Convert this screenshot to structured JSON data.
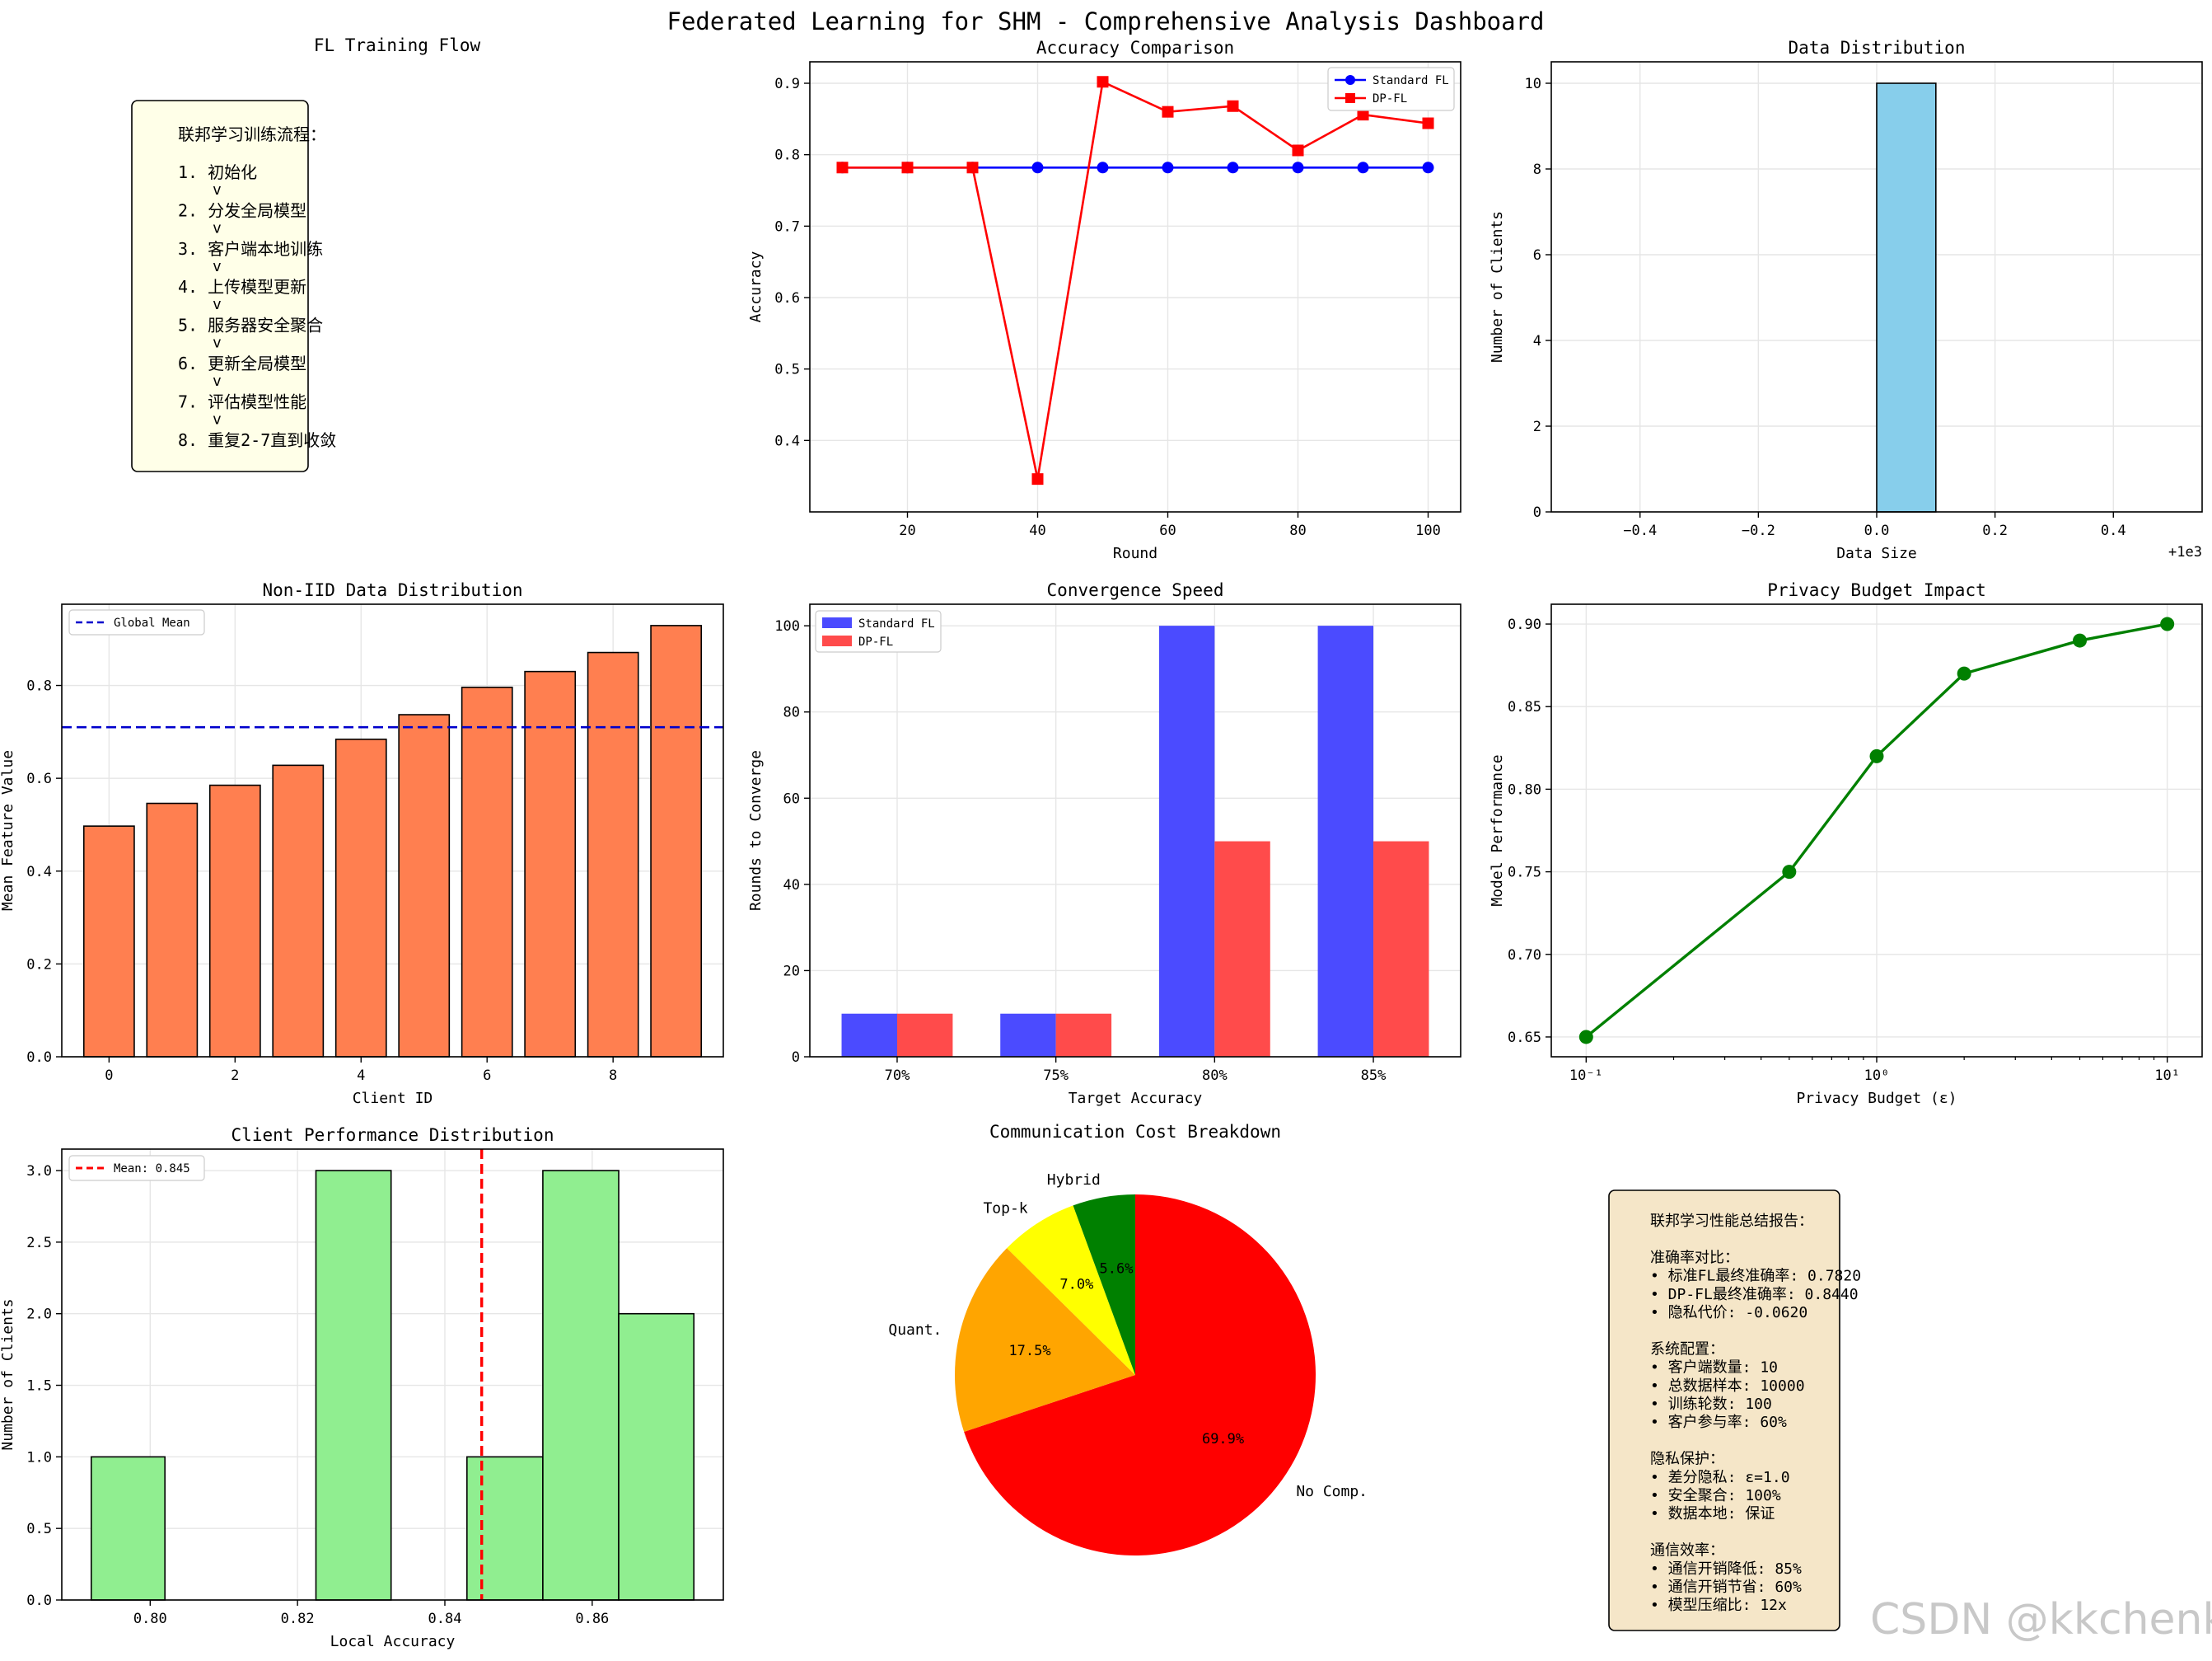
{
  "dashboard": {
    "title": "Federated Learning for SHM - Comprehensive Analysis Dashboard"
  },
  "watermark": "CSDN @kkchenkx",
  "colors": {
    "standard_fl": "#0000ff",
    "dp_fl": "#ff0000",
    "hist_blue": "#87ceeb",
    "bar_orange": "#ff7f50",
    "conv_blue": "#4b4bff",
    "conv_red": "#ff4b4b",
    "privacy_green": "#008000",
    "hist_green": "#90ee90",
    "flow_box": "#ffffe8",
    "summary_box": "#f5e6c8"
  },
  "chart_data": [
    {
      "id": "flow",
      "type": "diagram",
      "title": "FL Training Flow",
      "steps": [
        "1. 初始化",
        "2. 分发全局模型",
        "3. 客户端本地训练",
        "4. 上传模型更新",
        "5. 服务器安全聚合",
        "6. 更新全局模型",
        "7. 评估模型性能",
        "8. 重复2-7直到收敛"
      ],
      "box_title": "联邦学习训练流程：",
      "arrow": "v"
    },
    {
      "id": "accuracy",
      "type": "line",
      "title": "Accuracy Comparison",
      "xlabel": "Round",
      "ylabel": "Accuracy",
      "x": [
        10,
        20,
        30,
        40,
        50,
        60,
        70,
        80,
        90,
        100
      ],
      "xlim": [
        5,
        105
      ],
      "ylim": [
        0.3,
        0.93
      ],
      "xticks": [
        20,
        40,
        60,
        80,
        100
      ],
      "yticks": [
        0.4,
        0.5,
        0.6,
        0.7,
        0.8,
        0.9
      ],
      "series": [
        {
          "name": "Standard FL",
          "values": [
            0.782,
            0.782,
            0.782,
            0.782,
            0.782,
            0.782,
            0.782,
            0.782,
            0.782,
            0.782
          ]
        },
        {
          "name": "DP-FL",
          "values": [
            0.782,
            0.782,
            0.782,
            0.346,
            0.902,
            0.86,
            0.868,
            0.806,
            0.856,
            0.844
          ]
        }
      ],
      "legend": "top-right",
      "grid": true
    },
    {
      "id": "datadist",
      "type": "bar",
      "title": "Data Distribution",
      "xlabel": "Data Size",
      "ylabel": "Number of Clients",
      "offset_label": "+1e3",
      "xlim": [
        -0.55,
        0.55
      ],
      "ylim": [
        0,
        10.5
      ],
      "xticks": [
        -0.4,
        -0.2,
        0.0,
        0.2,
        0.4
      ],
      "yticks": [
        0,
        2,
        4,
        6,
        8,
        10
      ],
      "bins": [
        {
          "x0": 0.0,
          "x1": 0.1,
          "count": 10
        }
      ],
      "grid": true
    },
    {
      "id": "noniid",
      "type": "bar",
      "title": "Non-IID Data Distribution",
      "xlabel": "Client ID",
      "ylabel": "Mean Feature Value",
      "categories": [
        0,
        1,
        2,
        3,
        4,
        5,
        6,
        7,
        8,
        9
      ],
      "values": [
        0.497,
        0.546,
        0.585,
        0.628,
        0.684,
        0.737,
        0.796,
        0.83,
        0.871,
        0.929
      ],
      "global_mean": 0.71,
      "mean_label": "Global Mean",
      "xlim": [
        -0.75,
        9.75
      ],
      "ylim": [
        0,
        0.975
      ],
      "xticks": [
        0,
        2,
        4,
        6,
        8
      ],
      "yticks": [
        0.0,
        0.2,
        0.4,
        0.6,
        0.8
      ],
      "legend": "top-left",
      "grid": true
    },
    {
      "id": "convergence",
      "type": "bar",
      "title": "Convergence Speed",
      "xlabel": "Target Accuracy",
      "ylabel": "Rounds to Converge",
      "categories": [
        "70%",
        "75%",
        "80%",
        "85%"
      ],
      "series": [
        {
          "name": "Standard FL",
          "values": [
            10,
            10,
            100,
            100
          ]
        },
        {
          "name": "DP-FL",
          "values": [
            10,
            10,
            50,
            50
          ]
        }
      ],
      "xlim": [
        -0.55,
        3.55
      ],
      "ylim": [
        0,
        105
      ],
      "yticks": [
        0,
        20,
        40,
        60,
        80,
        100
      ],
      "legend": "top-left",
      "grid": true
    },
    {
      "id": "privacy",
      "type": "line",
      "title": "Privacy Budget Impact",
      "xlabel": "Privacy Budget (ε)",
      "ylabel": "Model Performance",
      "x": [
        0.1,
        0.5,
        1,
        2,
        5,
        10
      ],
      "values": [
        0.65,
        0.75,
        0.82,
        0.87,
        0.89,
        0.9
      ],
      "xscale": "log",
      "xlim_log10": [
        -1.12,
        1.12
      ],
      "ylim": [
        0.638,
        0.912
      ],
      "xtick_labels": [
        "10⁻¹",
        "10⁰",
        "10¹"
      ],
      "yticks": [
        0.65,
        0.7,
        0.75,
        0.8,
        0.85,
        0.9
      ],
      "grid": true
    },
    {
      "id": "clientperf",
      "type": "bar",
      "title": "Client Performance Distribution",
      "xlabel": "Local Accuracy",
      "ylabel": "Number of Clients",
      "bins": [
        {
          "x0": 0.792,
          "x1": 0.802,
          "count": 1
        },
        {
          "x0": 0.802,
          "x1": 0.812,
          "count": 0
        },
        {
          "x0": 0.812,
          "x1": 0.8225,
          "count": 0
        },
        {
          "x0": 0.8225,
          "x1": 0.8327,
          "count": 3
        },
        {
          "x0": 0.8327,
          "x1": 0.843,
          "count": 0
        },
        {
          "x0": 0.843,
          "x1": 0.8533,
          "count": 1
        },
        {
          "x0": 0.8533,
          "x1": 0.8636,
          "count": 3
        },
        {
          "x0": 0.8636,
          "x1": 0.8738,
          "count": 2
        }
      ],
      "mean": 0.845,
      "mean_label": "Mean: 0.845",
      "xlim": [
        0.788,
        0.8778
      ],
      "ylim": [
        0,
        3.15
      ],
      "xticks": [
        0.8,
        0.82,
        0.84,
        0.86
      ],
      "yticks": [
        0.0,
        0.5,
        1.0,
        1.5,
        2.0,
        2.5,
        3.0
      ],
      "legend": "top-left",
      "grid": true
    },
    {
      "id": "comm",
      "type": "pie",
      "title": "Communication Cost Breakdown",
      "labels": [
        "No Comp.",
        "Quant.",
        "Top-k",
        "Hybrid"
      ],
      "percent_labels": [
        "69.9%",
        "17.5%",
        "7.0%",
        "5.6%"
      ],
      "values": [
        69.9,
        17.5,
        7.0,
        5.6
      ],
      "colors": [
        "#ff0000",
        "#ffa500",
        "#ffff00",
        "#008000"
      ],
      "startangle": 90,
      "direction": "clockwise"
    },
    {
      "id": "summary",
      "type": "table",
      "lines": [
        "联邦学习性能总结报告：",
        "",
        "准确率对比：",
        "• 标准FL最终准确率: 0.7820",
        "• DP-FL最终准确率: 0.8440",
        "• 隐私代价: -0.0620",
        "",
        "系统配置：",
        "• 客户端数量: 10",
        "• 总数据样本: 10000",
        "• 训练轮数: 100",
        "• 客户参与率: 60%",
        "",
        "隐私保护：",
        "• 差分隐私: ε=1.0",
        "• 安全聚合: 100%",
        "• 数据本地: 保证",
        "",
        "通信效率：",
        "• 通信开销降低: 85%",
        "• 通信开销节省: 60%",
        "• 模型压缩比: 12x"
      ]
    }
  ]
}
